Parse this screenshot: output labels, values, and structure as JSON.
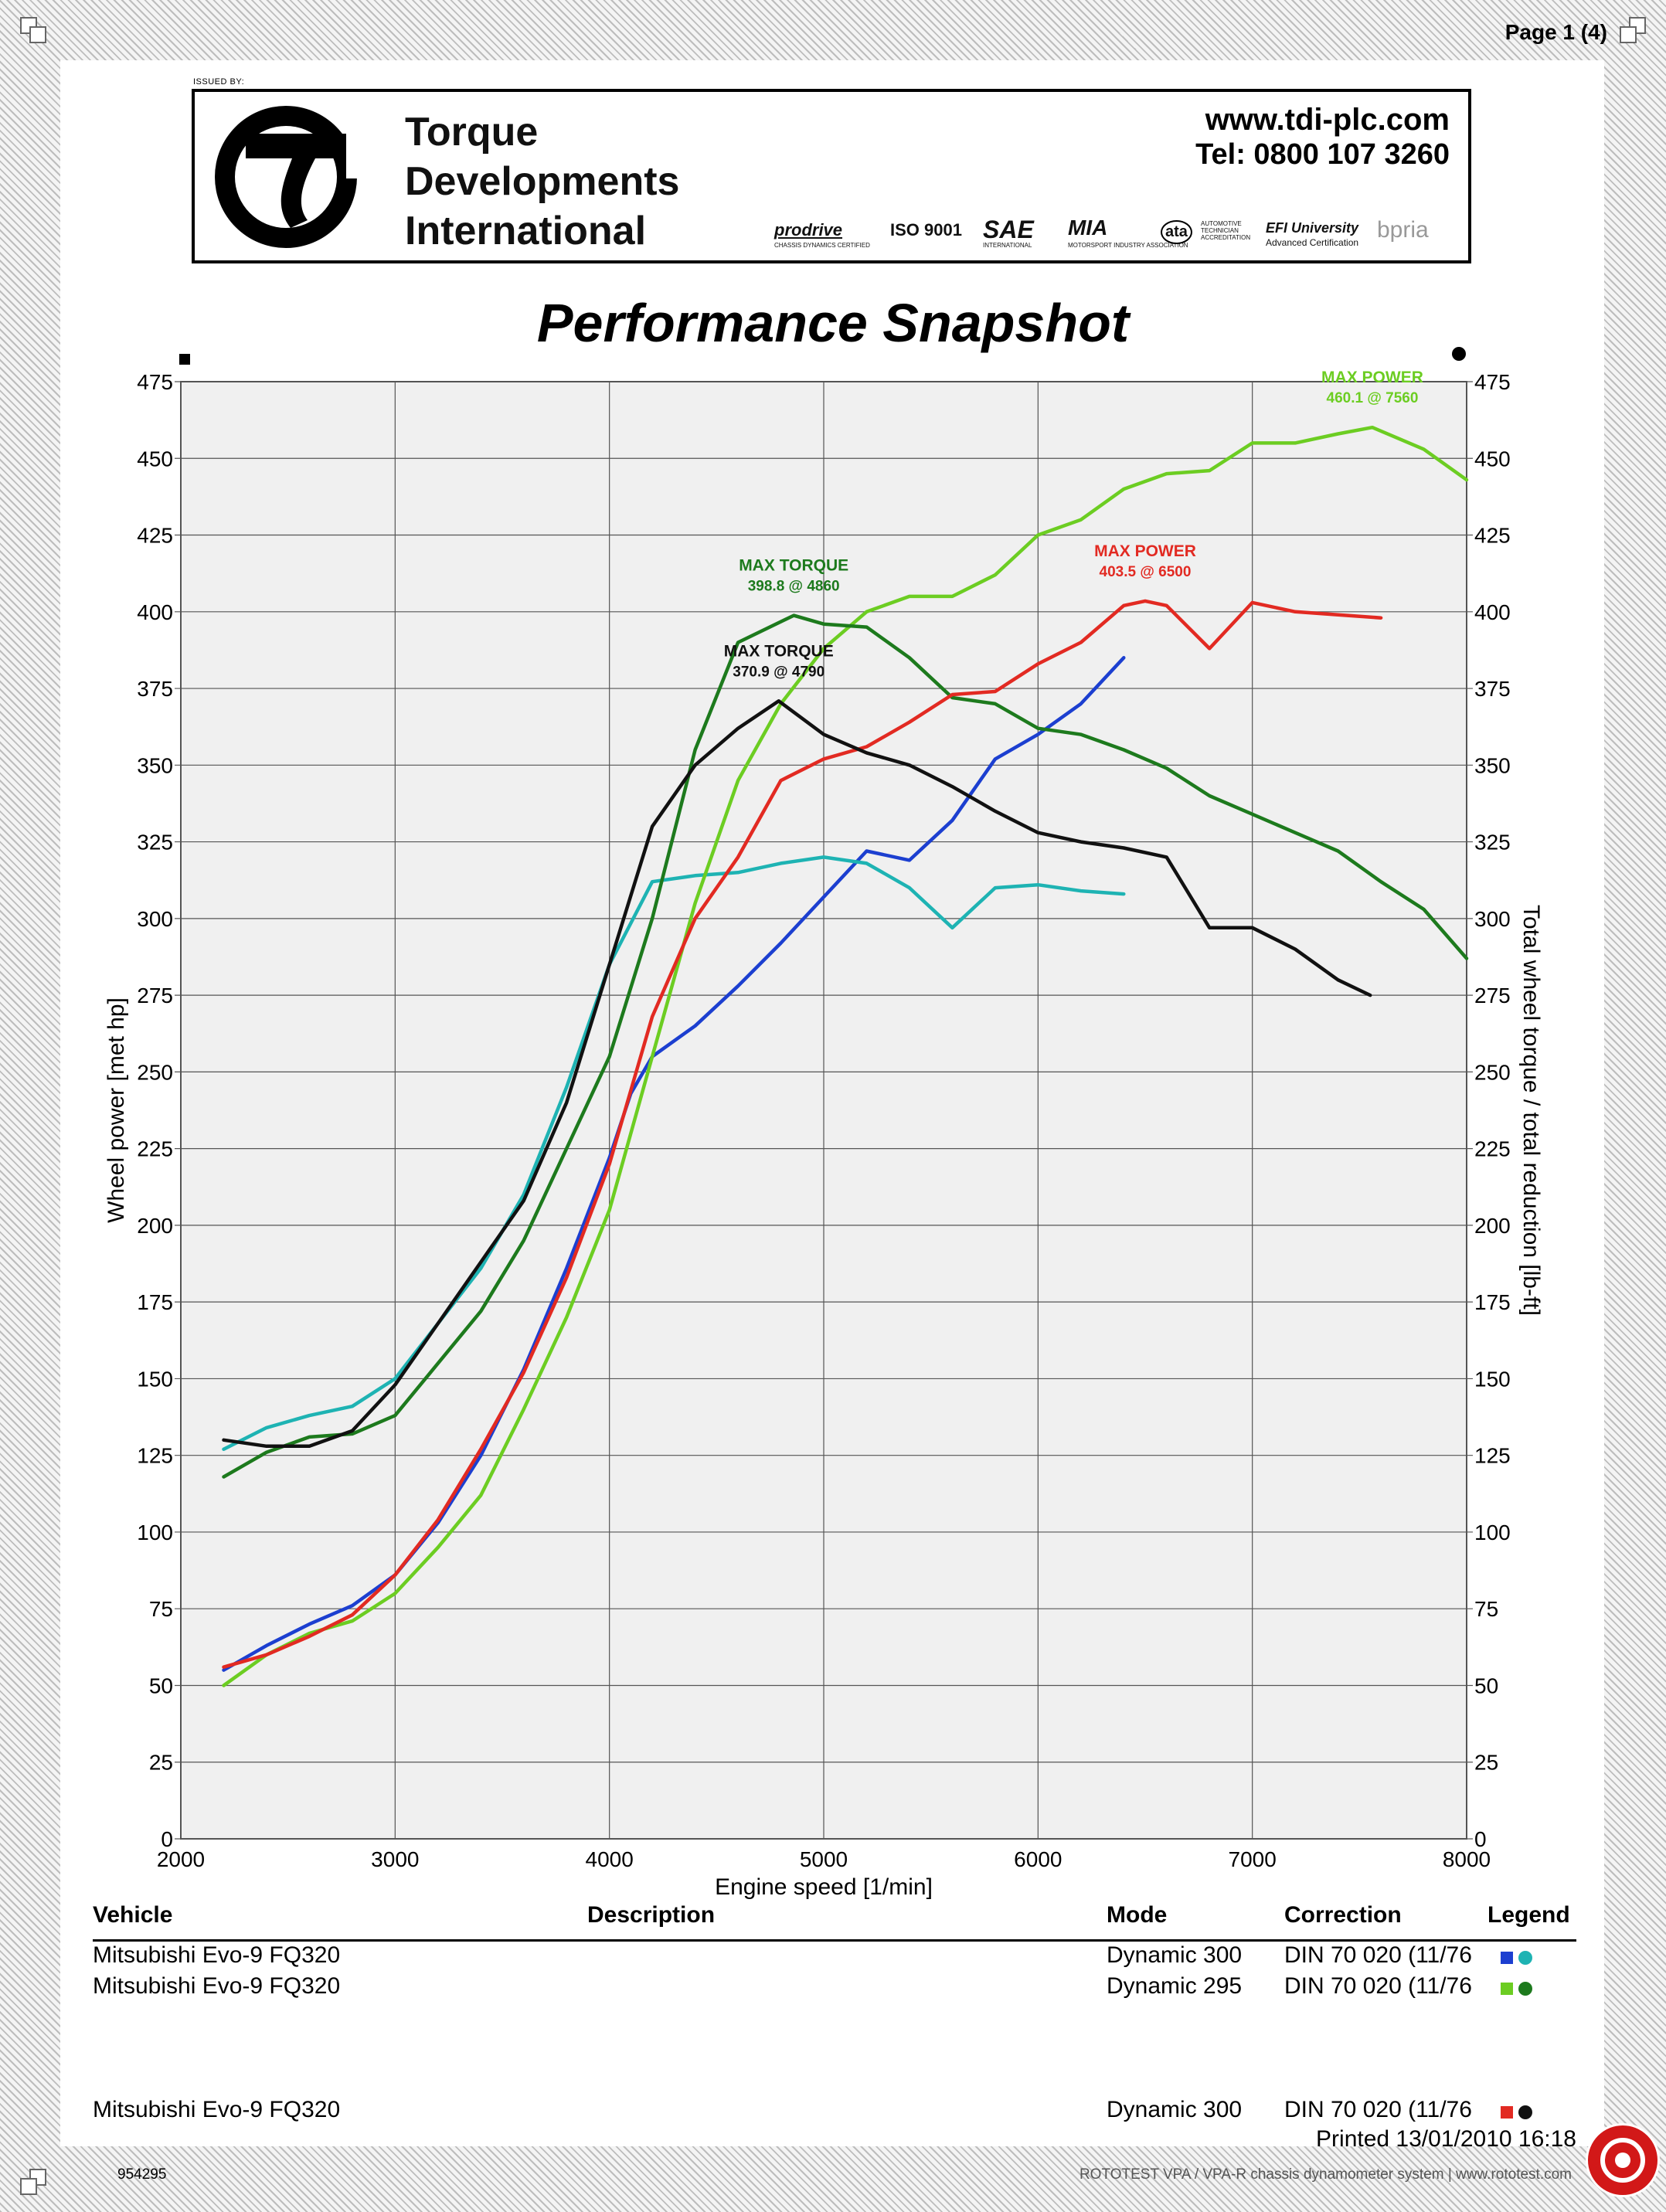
{
  "page": {
    "number": "Page 1 (4)",
    "issued_by": "ISSUED BY:"
  },
  "company": {
    "name_lines": "Torque\nDevelopments\nInternational",
    "website": "www.tdi-plc.com",
    "telephone": "Tel: 0800 107 3260",
    "partners": [
      "prodrive",
      "CHASSIS DYNAMICS CERTIFIED",
      "ISO 9001",
      "SAE",
      "INTERNATIONAL",
      "MIA",
      "MOTORSPORT INDUSTRY ASSOCIATION",
      "ata",
      "AUTOMOTIVE TECHNICIAN ACCREDITATION",
      "EFI University",
      "Advanced Certification",
      "bpria"
    ]
  },
  "title": "Performance Snapshot",
  "chart_data": {
    "type": "line",
    "xlabel": "Engine speed [1/min]",
    "ylabel_left": "Wheel power [met hp]",
    "ylabel_right": "Total wheel torque / total reduction [lb-ft]",
    "xlim": [
      2000,
      8000
    ],
    "ylim": [
      0,
      475
    ],
    "x_ticks": [
      2000,
      3000,
      4000,
      5000,
      6000,
      7000,
      8000
    ],
    "y_ticks": [
      0,
      25,
      50,
      75,
      100,
      125,
      150,
      175,
      200,
      225,
      250,
      275,
      300,
      325,
      350,
      375,
      400,
      425,
      450,
      475
    ],
    "grid": true,
    "series": [
      {
        "color": "#1c3fd0",
        "kind": "power",
        "points": [
          [
            2200,
            55
          ],
          [
            2400,
            63
          ],
          [
            2600,
            70
          ],
          [
            2800,
            76
          ],
          [
            3000,
            86
          ],
          [
            3200,
            103
          ],
          [
            3400,
            125
          ],
          [
            3600,
            153
          ],
          [
            3800,
            186
          ],
          [
            4000,
            222
          ],
          [
            4100,
            243
          ],
          [
            4200,
            255
          ],
          [
            4400,
            265
          ],
          [
            4600,
            278
          ],
          [
            4800,
            292
          ],
          [
            5000,
            307
          ],
          [
            5200,
            322
          ],
          [
            5400,
            319
          ],
          [
            5600,
            332
          ],
          [
            5800,
            352
          ],
          [
            6000,
            360
          ],
          [
            6200,
            370
          ],
          [
            6400,
            385
          ]
        ]
      },
      {
        "color": "#1eb3b3",
        "kind": "torque",
        "points": [
          [
            2200,
            127
          ],
          [
            2400,
            134
          ],
          [
            2600,
            138
          ],
          [
            2800,
            141
          ],
          [
            3000,
            150
          ],
          [
            3200,
            168
          ],
          [
            3400,
            186
          ],
          [
            3600,
            210
          ],
          [
            3800,
            245
          ],
          [
            4000,
            285
          ],
          [
            4200,
            312
          ],
          [
            4400,
            314
          ],
          [
            4600,
            315
          ],
          [
            4800,
            318
          ],
          [
            5000,
            320
          ],
          [
            5200,
            318
          ],
          [
            5400,
            310
          ],
          [
            5600,
            297
          ],
          [
            5800,
            310
          ],
          [
            6000,
            311
          ],
          [
            6200,
            309
          ],
          [
            6400,
            308
          ]
        ]
      },
      {
        "color": "#6ccd22",
        "kind": "power",
        "points": [
          [
            2200,
            50
          ],
          [
            2400,
            60
          ],
          [
            2600,
            67
          ],
          [
            2800,
            71
          ],
          [
            3000,
            80
          ],
          [
            3200,
            95
          ],
          [
            3400,
            112
          ],
          [
            3600,
            140
          ],
          [
            3800,
            170
          ],
          [
            4000,
            205
          ],
          [
            4200,
            255
          ],
          [
            4400,
            305
          ],
          [
            4600,
            345
          ],
          [
            4800,
            370
          ],
          [
            5000,
            388
          ],
          [
            5200,
            400
          ],
          [
            5400,
            405
          ],
          [
            5600,
            405
          ],
          [
            5800,
            412
          ],
          [
            6000,
            425
          ],
          [
            6200,
            430
          ],
          [
            6400,
            440
          ],
          [
            6600,
            445
          ],
          [
            6800,
            446
          ],
          [
            7000,
            455
          ],
          [
            7200,
            455
          ],
          [
            7400,
            458
          ],
          [
            7560,
            460.1
          ],
          [
            7800,
            453
          ],
          [
            8000,
            443
          ]
        ]
      },
      {
        "color": "#1d7a1d",
        "kind": "torque",
        "points": [
          [
            2200,
            118
          ],
          [
            2400,
            126
          ],
          [
            2600,
            131
          ],
          [
            2800,
            132
          ],
          [
            3000,
            138
          ],
          [
            3200,
            155
          ],
          [
            3400,
            172
          ],
          [
            3600,
            195
          ],
          [
            3800,
            225
          ],
          [
            4000,
            255
          ],
          [
            4200,
            300
          ],
          [
            4400,
            355
          ],
          [
            4600,
            390
          ],
          [
            4860,
            398.8
          ],
          [
            5000,
            396
          ],
          [
            5200,
            395
          ],
          [
            5400,
            385
          ],
          [
            5600,
            372
          ],
          [
            5800,
            370
          ],
          [
            6000,
            362
          ],
          [
            6200,
            360
          ],
          [
            6400,
            355
          ],
          [
            6600,
            349
          ],
          [
            6800,
            340
          ],
          [
            7000,
            334
          ],
          [
            7200,
            328
          ],
          [
            7400,
            322
          ],
          [
            7600,
            312
          ],
          [
            7800,
            303
          ],
          [
            8000,
            287
          ]
        ]
      },
      {
        "color": "#e22a22",
        "kind": "power",
        "points": [
          [
            2200,
            56
          ],
          [
            2400,
            60
          ],
          [
            2600,
            66
          ],
          [
            2800,
            73
          ],
          [
            3000,
            86
          ],
          [
            3200,
            104
          ],
          [
            3400,
            127
          ],
          [
            3600,
            152
          ],
          [
            3800,
            183
          ],
          [
            4000,
            220
          ],
          [
            4200,
            268
          ],
          [
            4400,
            300
          ],
          [
            4600,
            320
          ],
          [
            4800,
            345
          ],
          [
            5000,
            352
          ],
          [
            5200,
            356
          ],
          [
            5400,
            364
          ],
          [
            5600,
            373
          ],
          [
            5800,
            374
          ],
          [
            6000,
            383
          ],
          [
            6200,
            390
          ],
          [
            6400,
            402
          ],
          [
            6500,
            403.5
          ],
          [
            6600,
            402
          ],
          [
            6800,
            388
          ],
          [
            7000,
            403
          ],
          [
            7200,
            400
          ],
          [
            7400,
            399
          ],
          [
            7600,
            398
          ]
        ]
      },
      {
        "color": "#111111",
        "kind": "torque",
        "points": [
          [
            2200,
            130
          ],
          [
            2400,
            128
          ],
          [
            2600,
            128
          ],
          [
            2800,
            133
          ],
          [
            3000,
            148
          ],
          [
            3200,
            168
          ],
          [
            3400,
            188
          ],
          [
            3600,
            208
          ],
          [
            3800,
            240
          ],
          [
            4000,
            285
          ],
          [
            4200,
            330
          ],
          [
            4400,
            350
          ],
          [
            4600,
            362
          ],
          [
            4790,
            370.9
          ],
          [
            5000,
            360
          ],
          [
            5200,
            354
          ],
          [
            5400,
            350
          ],
          [
            5600,
            343
          ],
          [
            5800,
            335
          ],
          [
            6000,
            328
          ],
          [
            6200,
            325
          ],
          [
            6400,
            323
          ],
          [
            6600,
            320
          ],
          [
            6800,
            297
          ],
          [
            7000,
            297
          ],
          [
            7200,
            290
          ],
          [
            7400,
            280
          ],
          [
            7550,
            275
          ]
        ]
      }
    ],
    "annotations": [
      {
        "text": "MAX POWER\n460.1 @ 7560",
        "color": "#6ccd22",
        "x": 7560,
        "y": 460.1
      },
      {
        "text": "MAX POWER\n403.5 @ 6500",
        "color": "#e22a22",
        "x": 6500,
        "y": 403.5
      },
      {
        "text": "MAX TORQUE\n398.8 @ 4860",
        "color": "#1d7a1d",
        "x": 4860,
        "y": 398.8
      },
      {
        "text": "MAX TORQUE\n370.9 @ 4790",
        "color": "#111111",
        "x": 4790,
        "y": 370.9
      }
    ]
  },
  "table": {
    "headers": {
      "vehicle": "Vehicle",
      "description": "Description",
      "mode": "Mode",
      "correction": "Correction",
      "legend": "Legend"
    },
    "rows": [
      {
        "vehicle": "Mitsubishi Evo-9 FQ320",
        "mode": "Dynamic 300",
        "correction": "DIN 70 020 (11/76",
        "power_color": "#1c3fd0",
        "torque_color": "#1eb3b3"
      },
      {
        "vehicle": "Mitsubishi Evo-9 FQ320",
        "mode": "Dynamic 295",
        "correction": "DIN 70 020 (11/76",
        "power_color": "#6ccd22",
        "torque_color": "#1d7a1d"
      },
      {
        "vehicle": "Mitsubishi Evo-9 FQ320",
        "mode": "Dynamic 300",
        "correction": "DIN 70 020 (11/76",
        "power_color": "#e22a22",
        "torque_color": "#111111"
      }
    ]
  },
  "footer": {
    "printed": "Printed 13/01/2010 16:18",
    "serial": "954295",
    "system": "ROTOTEST VPA / VPA-R chassis dynamometer system | www.rototest.com"
  }
}
